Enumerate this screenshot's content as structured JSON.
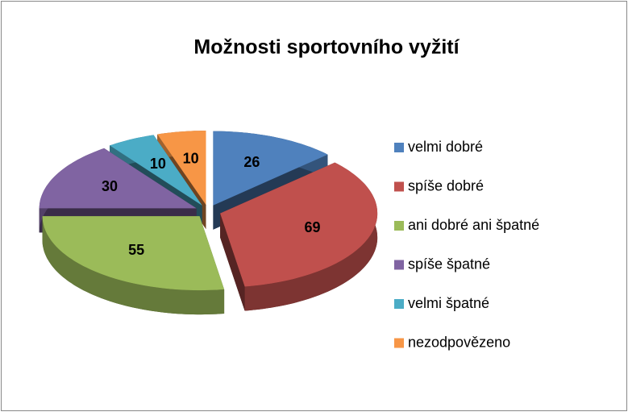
{
  "chart_data": {
    "type": "pie3d",
    "title": "Možnosti sportovního vyžití",
    "categories": [
      "velmi dobré",
      "spíše dobré",
      "ani dobré ani špatné",
      "spíše špatné",
      "velmi špatné",
      "nezodpovězeno"
    ],
    "values": [
      26,
      69,
      55,
      30,
      10,
      10
    ],
    "colors": [
      "#4f81bd",
      "#c0504d",
      "#9bbb59",
      "#8064a2",
      "#4bacc6",
      "#f79646"
    ],
    "legend": "right"
  }
}
